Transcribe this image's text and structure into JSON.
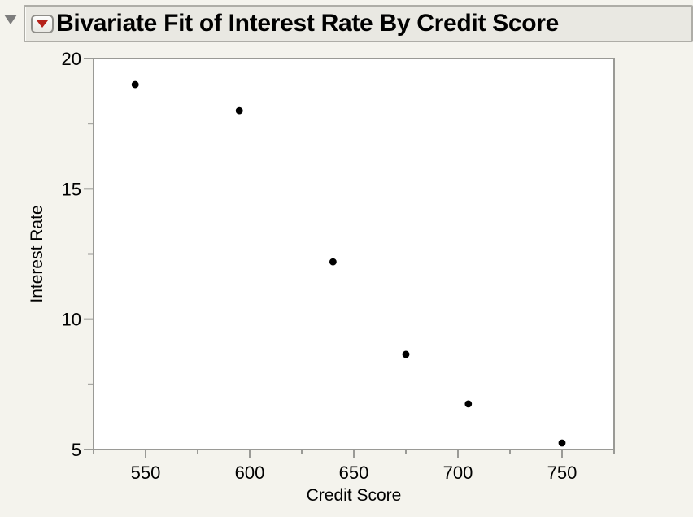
{
  "header": {
    "title": "Bivariate Fit of Interest Rate By Credit Score",
    "disclosure_icon": "triangle-down",
    "menu_icon": "red-triangle-down"
  },
  "colors": {
    "page_bg": "#f4f3ed",
    "header_bg": "#e9e8e2",
    "header_border": "#aeada7",
    "plot_bg": "#ffffff",
    "axis_gray": "#9a9a96",
    "marker_black": "#000000",
    "red_accent": "#b5211a",
    "disclosure_gray": "#7d7d7d"
  },
  "chart_data": {
    "type": "scatter",
    "title": "Bivariate Fit of Interest Rate By Credit Score",
    "xlabel": "Credit Score",
    "ylabel": "Interest Rate",
    "xlim": [
      525,
      775
    ],
    "ylim": [
      5,
      20
    ],
    "x_major_ticks": [
      550,
      600,
      650,
      700,
      750
    ],
    "x_minor_step": 25,
    "y_major_ticks": [
      5,
      10,
      15,
      20
    ],
    "y_minor_step": 2.5,
    "grid": false,
    "legend": "none",
    "points": [
      {
        "x": 545,
        "y": 19.0
      },
      {
        "x": 595,
        "y": 18.0
      },
      {
        "x": 640,
        "y": 12.2
      },
      {
        "x": 675,
        "y": 8.65
      },
      {
        "x": 705,
        "y": 6.75
      },
      {
        "x": 750,
        "y": 5.25
      }
    ],
    "marker": {
      "shape": "circle",
      "color": "#000000",
      "radius": 4.4
    }
  }
}
